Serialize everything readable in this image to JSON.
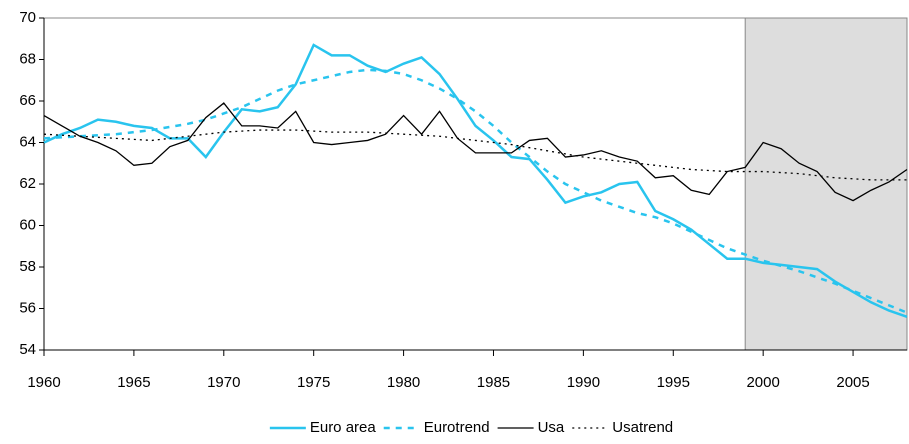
{
  "chart_data": {
    "type": "line",
    "x": [
      1960,
      1961,
      1962,
      1963,
      1964,
      1965,
      1966,
      1967,
      1968,
      1969,
      1970,
      1971,
      1972,
      1973,
      1974,
      1975,
      1976,
      1977,
      1978,
      1979,
      1980,
      1981,
      1982,
      1983,
      1984,
      1985,
      1986,
      1987,
      1988,
      1989,
      1990,
      1991,
      1992,
      1993,
      1994,
      1995,
      1996,
      1997,
      1998,
      1999,
      2000,
      2001,
      2002,
      2003,
      2004,
      2005,
      2006,
      2007,
      2008
    ],
    "series": [
      {
        "name": "Euro area",
        "color": "#29c4ee",
        "dash": "solid",
        "width": 2.5,
        "values": [
          64.0,
          64.4,
          64.7,
          65.1,
          65.0,
          64.8,
          64.7,
          64.2,
          64.2,
          63.3,
          64.5,
          65.6,
          65.5,
          65.7,
          66.8,
          68.7,
          68.2,
          68.2,
          67.7,
          67.4,
          67.8,
          68.1,
          67.3,
          66.1,
          64.8,
          64.1,
          63.3,
          63.2,
          62.2,
          61.1,
          61.4,
          61.6,
          62.0,
          62.1,
          60.7,
          60.3,
          59.8,
          59.1,
          58.4,
          58.4,
          58.2,
          58.1,
          58.0,
          57.9,
          57.3,
          56.8,
          56.3,
          55.9,
          55.6
        ]
      },
      {
        "name": "Eurotrend",
        "color": "#29c4ee",
        "dash": "dashed",
        "width": 2.5,
        "values": [
          64.2,
          64.25,
          64.3,
          64.35,
          64.4,
          64.5,
          64.6,
          64.75,
          64.9,
          65.1,
          65.4,
          65.7,
          66.1,
          66.5,
          66.8,
          67.0,
          67.2,
          67.4,
          67.5,
          67.45,
          67.3,
          67.0,
          66.6,
          66.1,
          65.5,
          64.8,
          64.0,
          63.3,
          62.6,
          62.0,
          61.6,
          61.2,
          60.9,
          60.6,
          60.4,
          60.1,
          59.7,
          59.3,
          58.9,
          58.6,
          58.3,
          58.05,
          57.8,
          57.5,
          57.2,
          56.85,
          56.5,
          56.15,
          55.8
        ]
      },
      {
        "name": "Usa",
        "color": "#000000",
        "dash": "solid",
        "width": 1.3,
        "values": [
          65.3,
          64.8,
          64.3,
          64.0,
          63.6,
          62.9,
          63.0,
          63.8,
          64.1,
          65.2,
          65.9,
          64.8,
          64.8,
          64.7,
          65.5,
          64.0,
          63.9,
          64.0,
          64.1,
          64.4,
          65.3,
          64.4,
          65.5,
          64.2,
          63.5,
          63.5,
          63.5,
          64.1,
          64.2,
          63.3,
          63.4,
          63.6,
          63.3,
          63.1,
          62.3,
          62.4,
          61.7,
          61.5,
          62.6,
          62.8,
          64.0,
          63.7,
          63.0,
          62.6,
          61.6,
          61.2,
          61.7,
          62.1,
          62.7
        ]
      },
      {
        "name": "Usatrend",
        "color": "#000000",
        "dash": "dotted",
        "width": 1.3,
        "values": [
          64.4,
          64.35,
          64.3,
          64.25,
          64.2,
          64.15,
          64.1,
          64.2,
          64.3,
          64.4,
          64.5,
          64.55,
          64.6,
          64.6,
          64.6,
          64.55,
          64.5,
          64.5,
          64.5,
          64.45,
          64.4,
          64.35,
          64.3,
          64.2,
          64.1,
          64.0,
          63.9,
          63.75,
          63.6,
          63.45,
          63.3,
          63.2,
          63.1,
          63.0,
          62.9,
          62.8,
          62.7,
          62.65,
          62.6,
          62.6,
          62.6,
          62.55,
          62.5,
          62.4,
          62.3,
          62.25,
          62.2,
          62.2,
          62.2
        ]
      }
    ],
    "xlim": [
      1960,
      2008
    ],
    "xticks": [
      1960,
      1965,
      1970,
      1975,
      1980,
      1985,
      1990,
      1995,
      2000,
      2005
    ],
    "ylim": [
      54,
      70
    ],
    "yticks": [
      54,
      56,
      58,
      60,
      62,
      64,
      66,
      68,
      70
    ],
    "shaded_region": [
      1999,
      2008
    ],
    "shade_color": "#dddddd",
    "legend": "bottom"
  }
}
